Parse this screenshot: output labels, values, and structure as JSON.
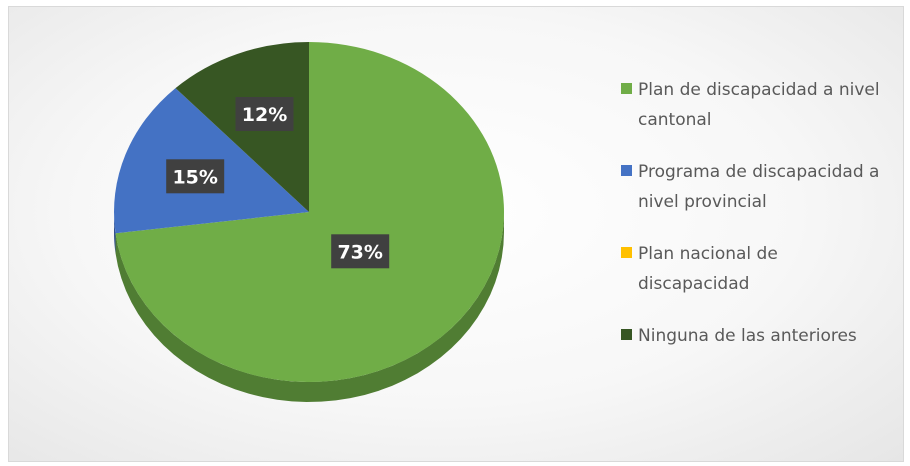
{
  "chart_data": {
    "type": "pie",
    "title": "",
    "categories": [
      "Plan de discapacidad a nivel cantonal",
      "Programa de discapacidad a nivel provincial",
      "Plan nacional de discapacidad",
      "Ninguna de las anteriores"
    ],
    "values": [
      73,
      15,
      0,
      12
    ],
    "data_labels": [
      "73%",
      "15%",
      "",
      "12%"
    ],
    "colors": [
      "#70AD47",
      "#4472C4",
      "#FFC000",
      "#375623"
    ],
    "side_colors": [
      "#507d33",
      "#304f8c",
      "#b38800",
      "#263d18"
    ],
    "legend_position": "right",
    "legend_lines": [
      [
        "Plan de discapacidad a nivel",
        "cantonal"
      ],
      [
        "Programa de discapacidad a",
        "nivel provincial"
      ],
      [
        "Plan nacional de",
        "discapacidad"
      ],
      [
        "Ninguna de las anteriores"
      ]
    ]
  }
}
